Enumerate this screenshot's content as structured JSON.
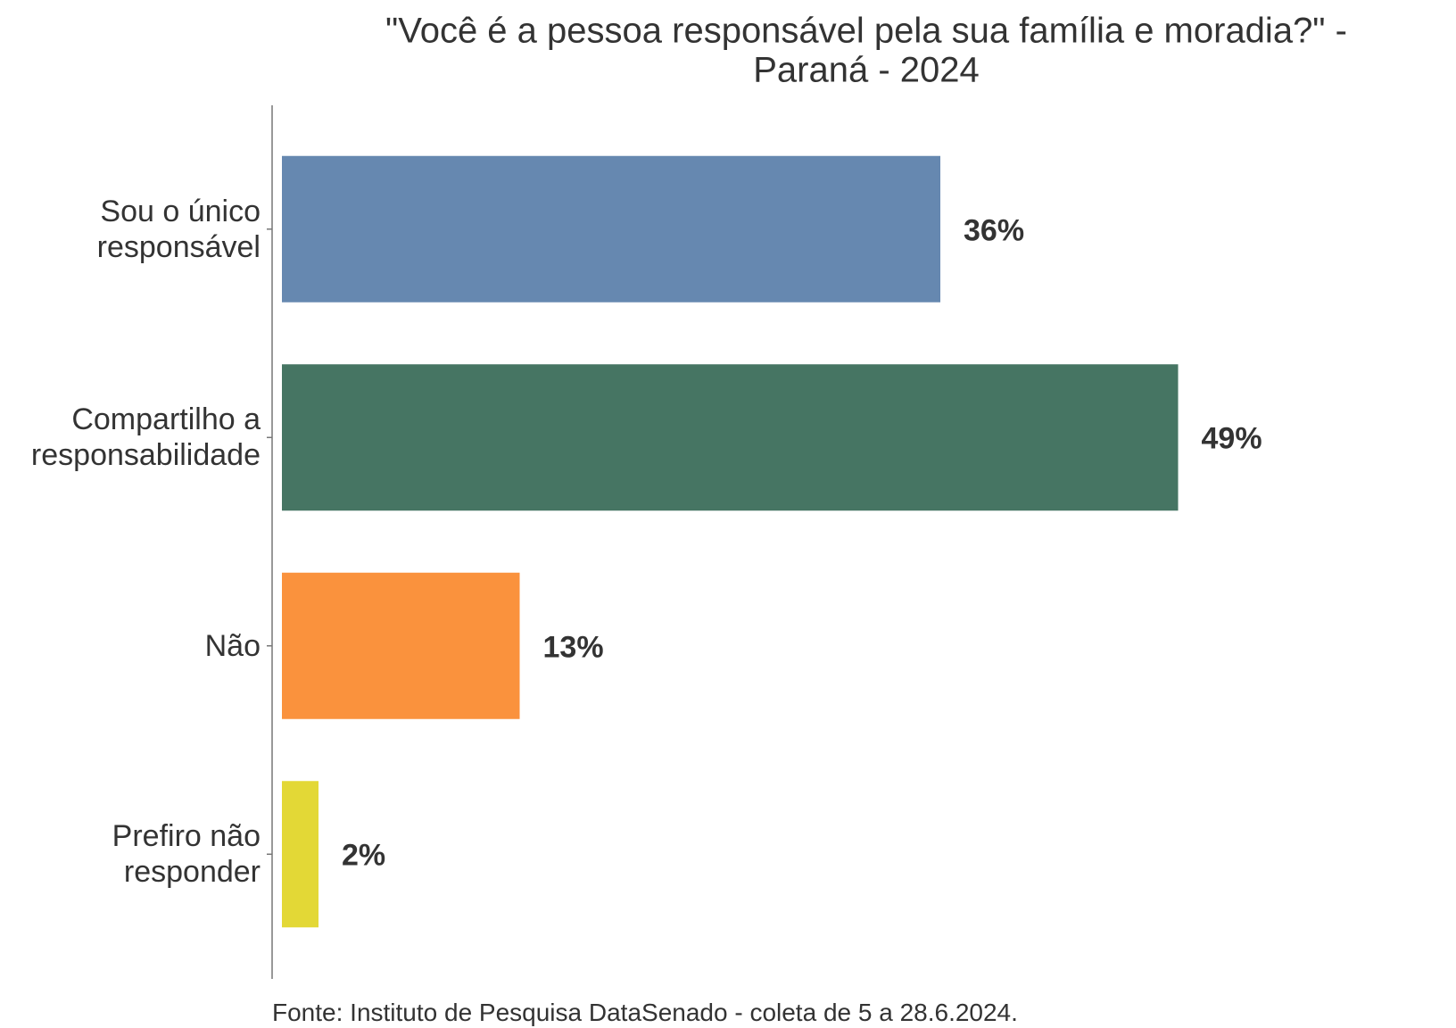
{
  "chart_data": {
    "type": "bar",
    "orientation": "horizontal",
    "title": [
      "\"Você é a pessoa responsável pela sua família e moradia?\" -",
      "Paraná - 2024"
    ],
    "categories": [
      "Sou o único responsável",
      "Compartilho a responsabilidade",
      "Não",
      "Prefiro não responder"
    ],
    "values": [
      36,
      49,
      13,
      2
    ],
    "value_labels": [
      "36%",
      "49%",
      "13%",
      "2%"
    ],
    "colors": [
      "#6688b0",
      "#467563",
      "#fa923d",
      "#e3d836"
    ],
    "source": "Fonte: Instituto de Pesquisa DataSenado - coleta de 5 a 28.6.2024."
  }
}
